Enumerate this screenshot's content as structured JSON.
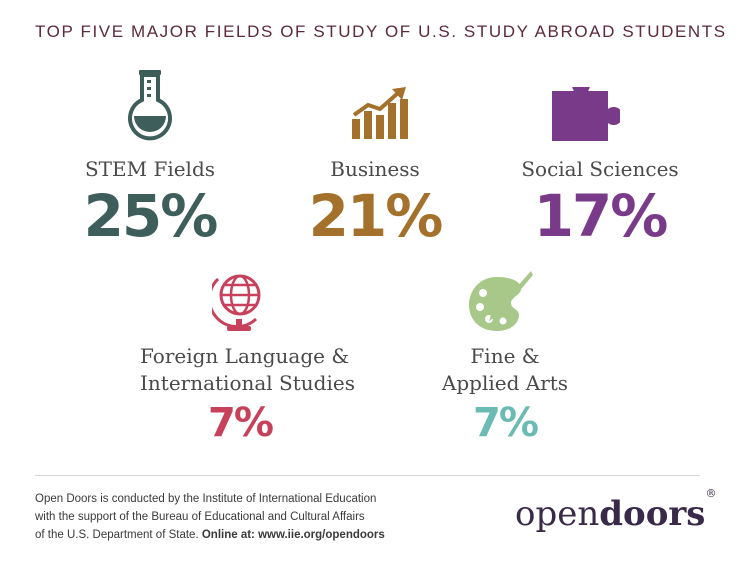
{
  "title": "TOP FIVE MAJOR FIELDS OF STUDY OF U.S. STUDY ABROAD STUDENTS",
  "colors": {
    "stem": "#3d5e5b",
    "business": "#a4712c",
    "social": "#7a3a8a",
    "foreign": "#c7415a",
    "arts": "#6bbab4",
    "arts_icon": "#a8c88a"
  },
  "fields": [
    {
      "icon": "flask-icon",
      "label": "STEM Fields",
      "percent": "25%"
    },
    {
      "icon": "growth-chart-icon",
      "label": "Business",
      "percent": "21%"
    },
    {
      "icon": "puzzle-piece-icon",
      "label": "Social Sciences",
      "percent": "17%"
    },
    {
      "icon": "globe-icon",
      "label_line1": "Foreign Language &",
      "label_line2": "International Studies",
      "percent": "7%"
    },
    {
      "icon": "palette-icon",
      "label_line1": "Fine &",
      "label_line2": "Applied Arts",
      "percent": "7%"
    }
  ],
  "footer": {
    "line1": "Open Doors is conducted by the Institute of International Education",
    "line2": "with the support of the Bureau of Educational and Cultural Affairs",
    "line3_plain": "of the U.S. Department of State.",
    "line3_bold": "Online at: www.iie.org/opendoors"
  },
  "logo": {
    "part1": "open",
    "part2": "doors",
    "mark": "®"
  }
}
